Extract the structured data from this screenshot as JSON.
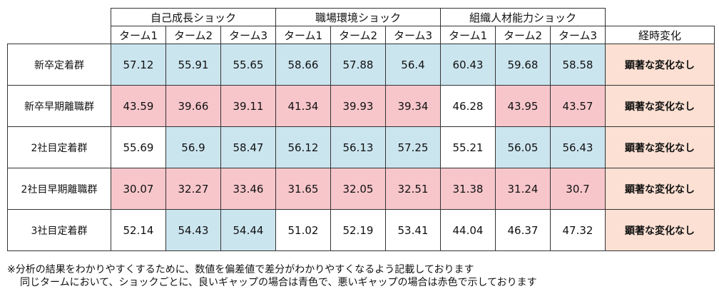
{
  "chart_data": {
    "type": "table",
    "groups": [
      "自己成長ショック",
      "職場環境ショック",
      "組織人材能力ショック"
    ],
    "terms": [
      "ターム1",
      "ターム2",
      "ターム3"
    ],
    "trend_header": "経時変化",
    "rows": [
      {
        "label": "新卒定着群",
        "values": [
          "57.12",
          "55.91",
          "55.65",
          "58.66",
          "57.88",
          "56.4",
          "60.43",
          "59.68",
          "58.58"
        ],
        "status": [
          "good",
          "good",
          "good",
          "good",
          "good",
          "good",
          "good",
          "good",
          "good"
        ],
        "trend": "顕著な変化なし"
      },
      {
        "label": "新卒早期離職群",
        "values": [
          "43.59",
          "39.66",
          "39.11",
          "41.34",
          "39.93",
          "39.34",
          "46.28",
          "43.95",
          "43.57"
        ],
        "status": [
          "bad",
          "bad",
          "bad",
          "bad",
          "bad",
          "bad",
          "none",
          "bad",
          "bad"
        ],
        "trend": "顕著な変化なし"
      },
      {
        "label": "2社目定着群",
        "values": [
          "55.69",
          "56.9",
          "58.47",
          "56.12",
          "56.13",
          "57.25",
          "55.21",
          "56.05",
          "56.43"
        ],
        "status": [
          "none",
          "good",
          "good",
          "good",
          "good",
          "good",
          "none",
          "good",
          "good"
        ],
        "trend": "顕著な変化なし"
      },
      {
        "label": "2社目早期離職群",
        "values": [
          "30.07",
          "32.27",
          "33.46",
          "31.65",
          "32.05",
          "32.51",
          "31.38",
          "31.24",
          "30.7"
        ],
        "status": [
          "bad",
          "bad",
          "bad",
          "bad",
          "bad",
          "bad",
          "bad",
          "bad",
          "bad"
        ],
        "trend": "顕著な変化なし"
      },
      {
        "label": "3社目定着群",
        "values": [
          "52.14",
          "54.43",
          "54.44",
          "51.02",
          "52.19",
          "53.41",
          "44.04",
          "46.37",
          "47.32"
        ],
        "status": [
          "none",
          "good",
          "good",
          "none",
          "none",
          "none",
          "none",
          "none",
          "none"
        ],
        "trend": "顕著な変化なし"
      }
    ],
    "colors": {
      "good": "#cbe5ef",
      "bad": "#f7c6cb",
      "trend_bg": "#fbe0d3",
      "none": "#ffffff"
    }
  },
  "notes": [
    "※分析の結果をわかりやすくするために、数値を偏差値で差分がわかりやすくなるよう記載しております",
    "同じタームにおいて、ショックごとに、良いギャップの場合は青色で、悪いギャップの場合は赤色で示しております"
  ]
}
